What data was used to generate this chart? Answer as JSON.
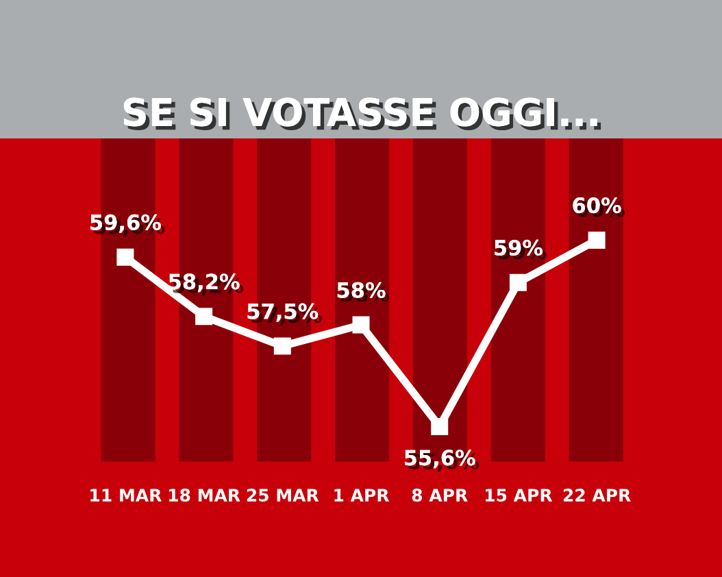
{
  "chart_data": {
    "type": "line",
    "title": "SE SI VOTASSE OGGI...",
    "categories": [
      "11 MAR",
      "18 MAR",
      "25 MAR",
      "1 APR",
      "8 APR",
      "15 APR",
      "22 APR"
    ],
    "series": [
      {
        "color": "#ffffff",
        "values": [
          59.6,
          58.2,
          57.5,
          58,
          55.6,
          59,
          60
        ],
        "value_labels": [
          "59,6%",
          "58,2%",
          "57,5%",
          "58%",
          "55,6%",
          "59%",
          "60%"
        ]
      }
    ],
    "marker": "square",
    "line_style": "solid",
    "grid": false,
    "legend": false,
    "tick_labels": "x"
  }
}
